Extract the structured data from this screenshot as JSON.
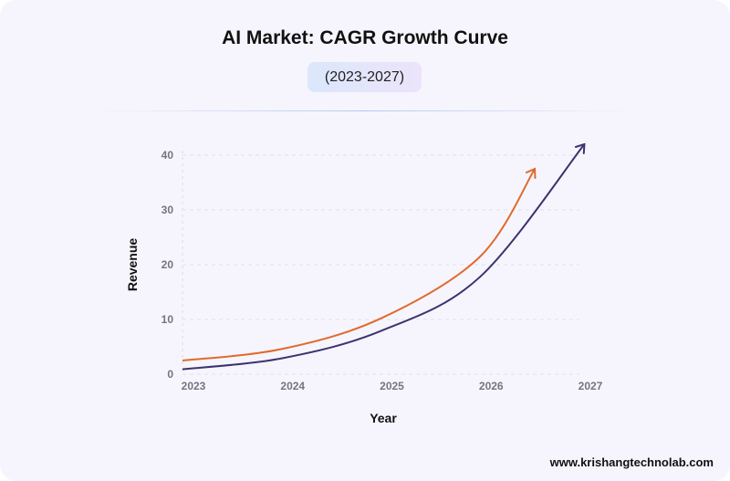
{
  "chart_data": {
    "type": "line",
    "title": "AI Market: CAGR Growth Curve",
    "subtitle": "(2023-2027)",
    "xlabel": "Year",
    "ylabel": "Revenue",
    "xlim": [
      2023,
      2027
    ],
    "ylim": [
      0,
      40
    ],
    "x_ticks": [
      "2023",
      "2024",
      "2025",
      "2026",
      "2027"
    ],
    "y_ticks": [
      "0",
      "10",
      "20",
      "30",
      "40"
    ],
    "grid": true,
    "series": [
      {
        "color": "#e06a2c",
        "x": [
          2023,
          2024,
          2025,
          2026,
          2026.55
        ],
        "values": [
          2.5,
          4.6,
          10.2,
          21.5,
          37.5
        ]
      },
      {
        "color": "#3b3470",
        "x": [
          2023,
          2024,
          2025,
          2026,
          2027.05
        ],
        "values": [
          0.9,
          2.9,
          7.9,
          17.8,
          42
        ]
      }
    ]
  },
  "footer": "www.krishangtechnolab.com"
}
